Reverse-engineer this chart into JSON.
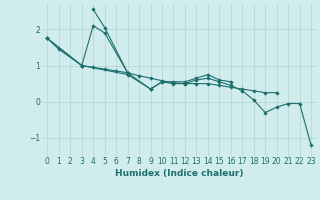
{
  "xlabel": "Humidex (Indice chaleur)",
  "bg_color": "#d0ecec",
  "grid_color": "#b8d8d8",
  "line_color": "#1e6e6e",
  "xlim": [
    -0.5,
    23.5
  ],
  "ylim": [
    -1.5,
    2.7
  ],
  "yticks": [
    -1,
    0,
    1,
    2
  ],
  "xticks": [
    0,
    1,
    2,
    3,
    4,
    5,
    6,
    7,
    8,
    9,
    10,
    11,
    12,
    13,
    14,
    15,
    16,
    17,
    18,
    19,
    20,
    21,
    22,
    23
  ],
  "series": [
    {
      "x": [
        0,
        1,
        3,
        4,
        5,
        7,
        9,
        10,
        11,
        12,
        13,
        14,
        15,
        16
      ],
      "y": [
        1.75,
        1.45,
        1.0,
        2.1,
        1.9,
        0.8,
        0.35,
        0.55,
        0.55,
        0.55,
        0.65,
        0.75,
        0.6,
        0.55
      ]
    },
    {
      "x": [
        0,
        3,
        4,
        5,
        6,
        7,
        8,
        9,
        10,
        11,
        12,
        13,
        14,
        15,
        16,
        17,
        18,
        19,
        20
      ],
      "y": [
        1.75,
        1.0,
        0.95,
        0.9,
        0.85,
        0.8,
        0.72,
        0.65,
        0.58,
        0.52,
        0.5,
        0.5,
        0.5,
        0.45,
        0.4,
        0.35,
        0.3,
        0.25,
        0.25
      ]
    },
    {
      "x": [
        4,
        5,
        7
      ],
      "y": [
        2.55,
        2.05,
        0.8
      ]
    },
    {
      "x": [
        0,
        3,
        7,
        9,
        10,
        11,
        12,
        13,
        14,
        15,
        16,
        17,
        18,
        19,
        20,
        21,
        22,
        23
      ],
      "y": [
        1.75,
        1.0,
        0.75,
        0.35,
        0.55,
        0.5,
        0.5,
        0.6,
        0.65,
        0.55,
        0.45,
        0.3,
        0.05,
        -0.3,
        -0.15,
        -0.05,
        -0.05,
        -1.2
      ]
    }
  ]
}
